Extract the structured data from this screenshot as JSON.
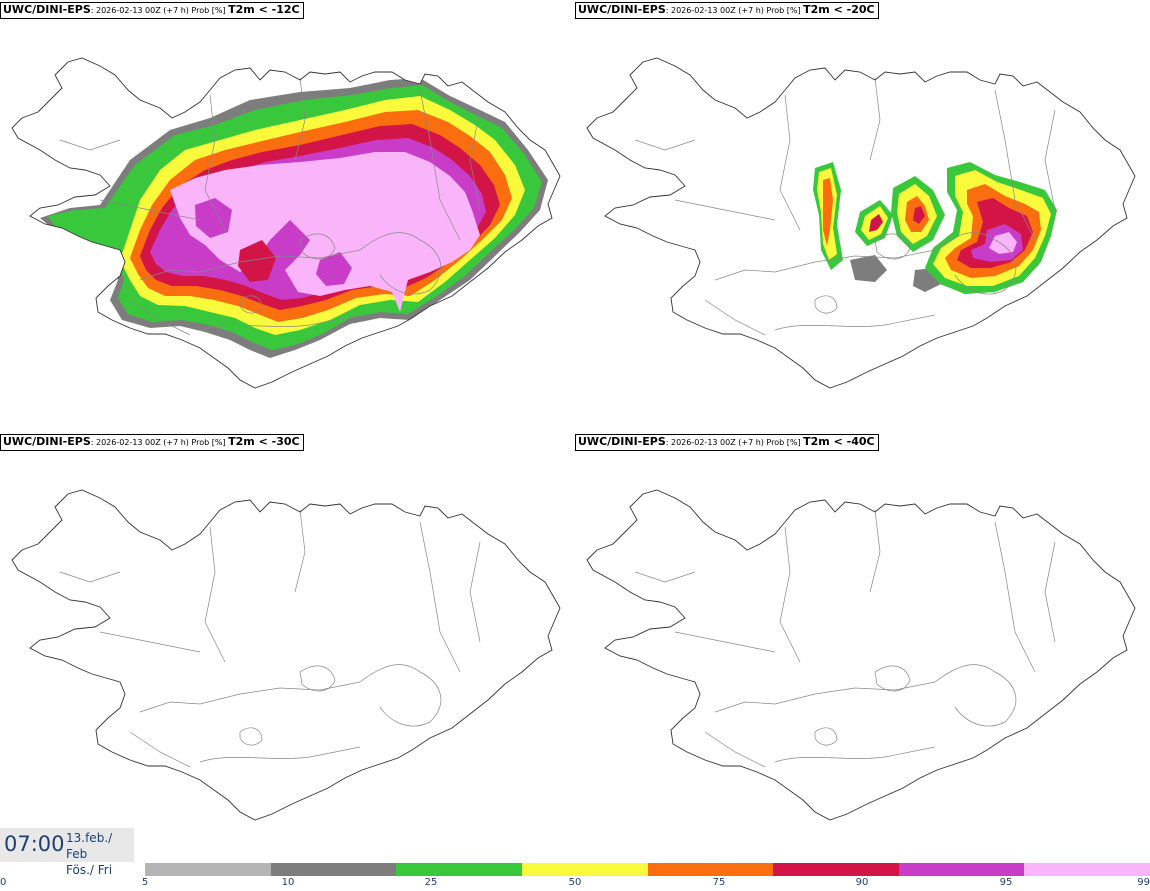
{
  "panels": [
    {
      "model": "UWC/DINI-EPS",
      "run": "2026-02-13 00Z (+7 h) Prob [%]",
      "threshold": "T2m < -12C",
      "field": "cold12"
    },
    {
      "model": "UWC/DINI-EPS",
      "run": "2026-02-13 00Z (+7 h) Prob [%]",
      "threshold": "T2m < -20C",
      "field": "cold20"
    },
    {
      "model": "UWC/DINI-EPS",
      "run": "2026-02-13 00Z (+7 h) Prob [%]",
      "threshold": "T2m < -30C",
      "field": "none"
    },
    {
      "model": "UWC/DINI-EPS",
      "run": "2026-02-13 00Z (+7 h) Prob [%]",
      "threshold": "T2m < -40C",
      "field": "none"
    }
  ],
  "time": {
    "clock": "07:00",
    "date_line1": "13.feb./ Feb",
    "date_line2": "Fös./ Fri"
  },
  "legend": {
    "colors": [
      "#b4b4b4",
      "#7d7d7d",
      "#39c83c",
      "#fafa3c",
      "#fa6e10",
      "#d21446",
      "#c83cc8",
      "#fab4fa"
    ],
    "ticks": [
      "0",
      "5",
      "10",
      "25",
      "50",
      "75",
      "90",
      "95",
      "99"
    ]
  }
}
